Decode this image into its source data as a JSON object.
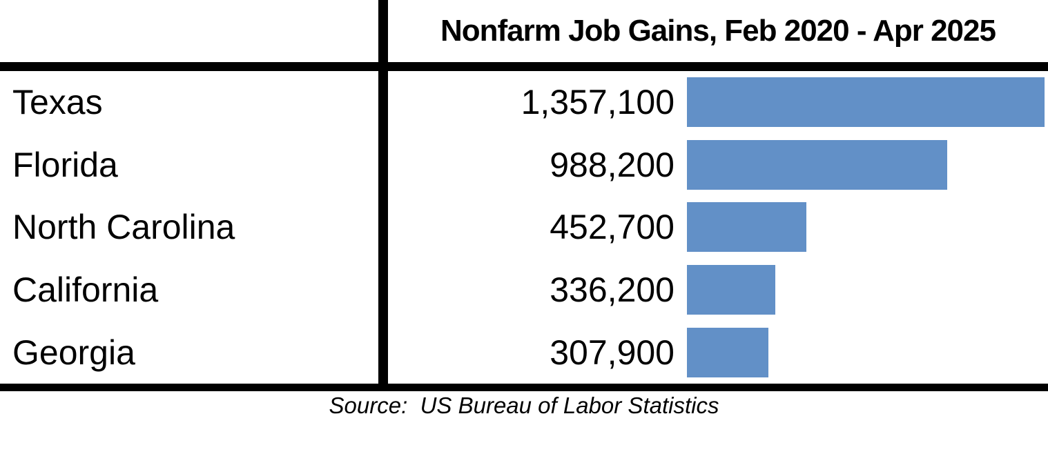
{
  "chart_data": {
    "type": "bar",
    "orientation": "horizontal",
    "title": "Nonfarm Job Gains, Feb 2020 - Apr 2025",
    "source_note": "Source:  US Bureau of Labor Statistics",
    "categories": [
      "Texas",
      "Florida",
      "North Carolina",
      "California",
      "Georgia"
    ],
    "values": [
      1357100,
      988200,
      452700,
      336200,
      307900
    ],
    "value_labels": [
      "1,357,100",
      "988,200",
      "452,700",
      "336,200",
      "307,900"
    ],
    "xlim": [
      0,
      1357100
    ],
    "grid": false,
    "legend": false,
    "bar_color": "#6290C7",
    "rule_color": "#000000"
  }
}
